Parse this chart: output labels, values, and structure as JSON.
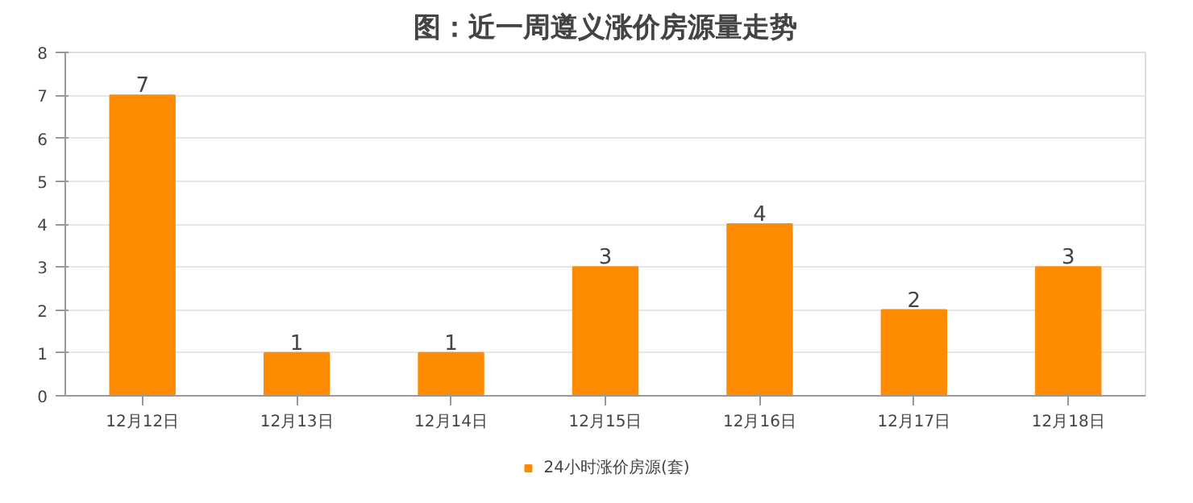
{
  "chart_data": {
    "type": "bar",
    "title": "图：近一周遵义涨价房源量走势",
    "categories": [
      "12月12日",
      "12月13日",
      "12月14日",
      "12月15日",
      "12月16日",
      "12月17日",
      "12月18日"
    ],
    "series": [
      {
        "name": "24小时涨价房源(套)",
        "color": "#ff8c00",
        "values": [
          7,
          1,
          1,
          3,
          4,
          2,
          3
        ]
      }
    ],
    "ylim": [
      0,
      8
    ],
    "yticks": [
      0,
      1,
      2,
      3,
      4,
      5,
      6,
      7,
      8
    ],
    "grid": "y",
    "legend": "bottom",
    "data_labels": true
  }
}
